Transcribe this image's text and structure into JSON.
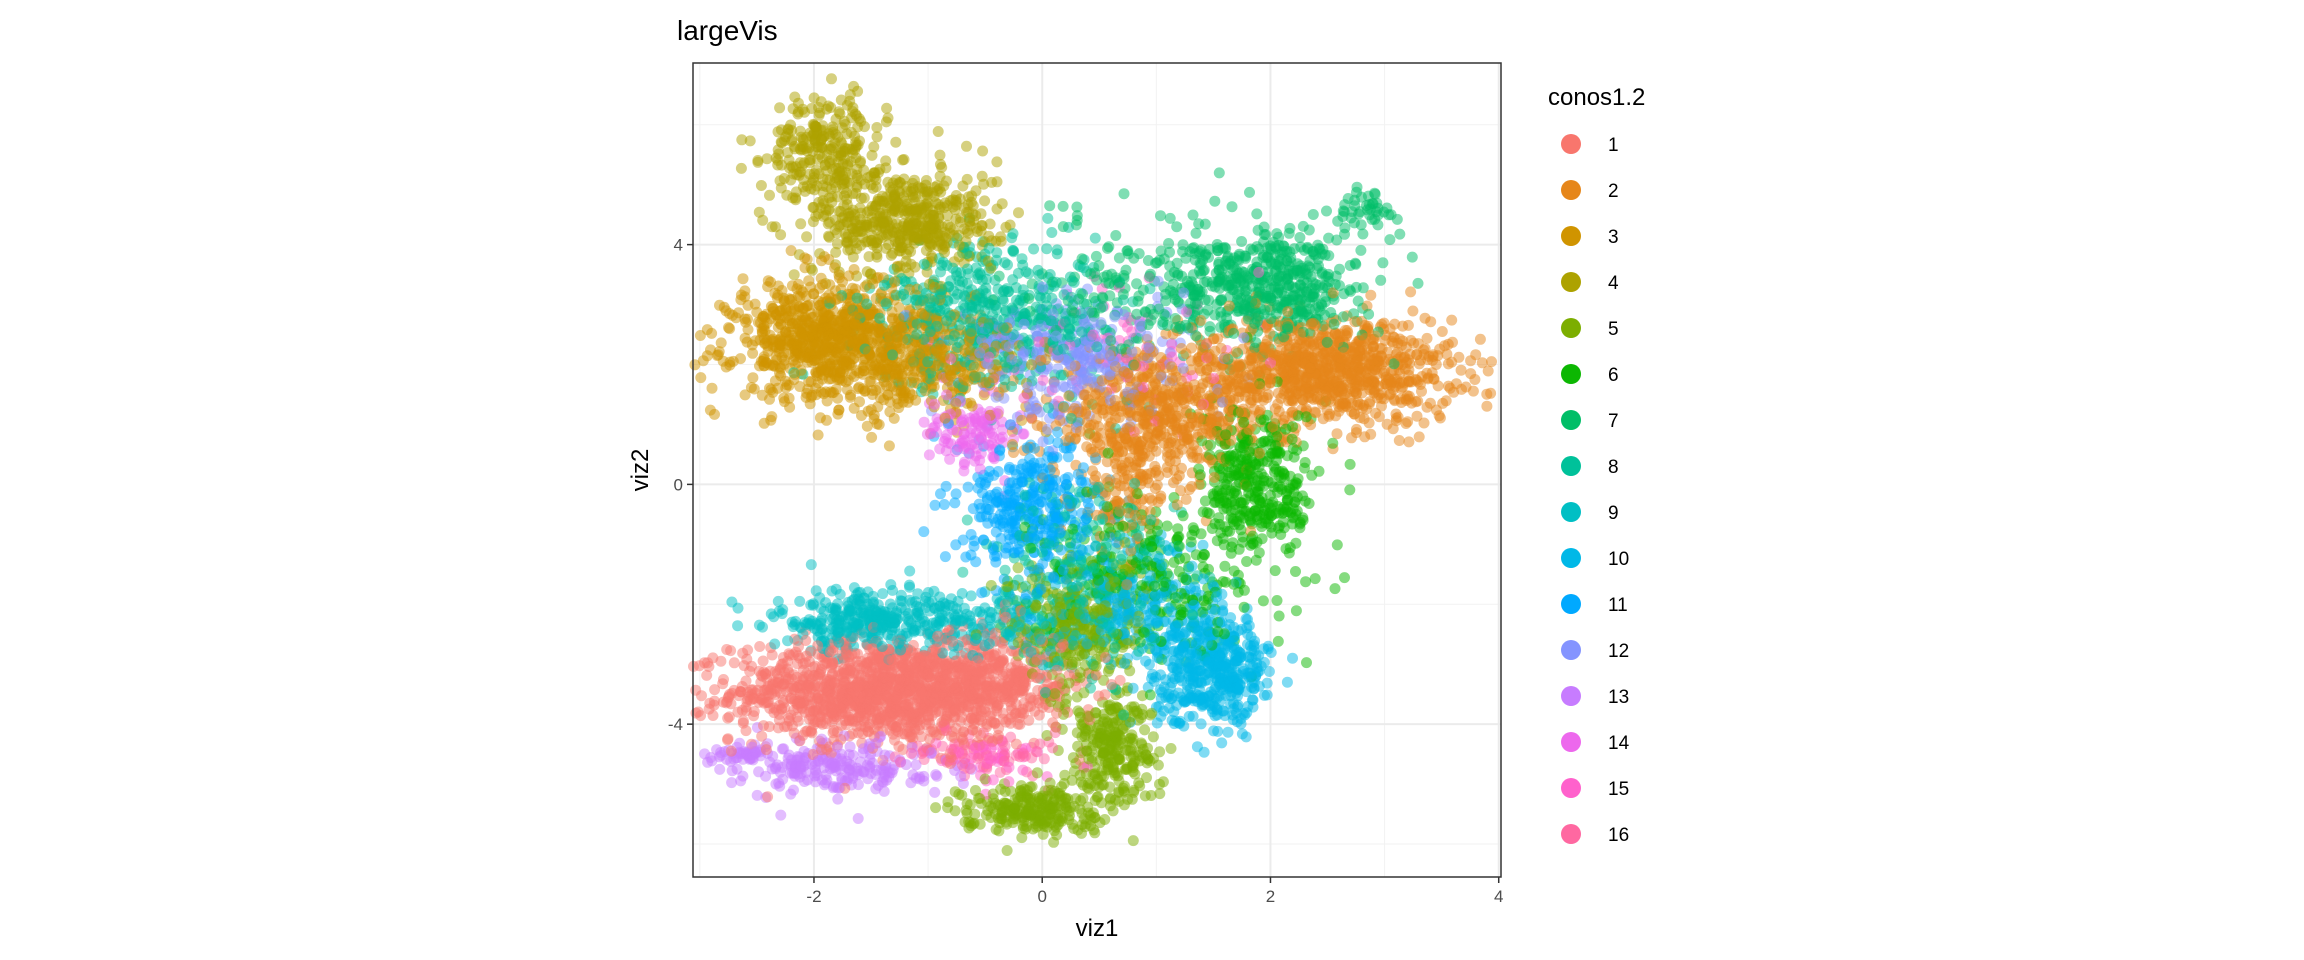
{
  "chart_data": {
    "type": "scatter",
    "title": "largeVis",
    "xlabel": "viz1",
    "ylabel": "viz2",
    "xlim": [
      -3.06,
      4.02
    ],
    "ylim": [
      -6.55,
      7.03
    ],
    "xticks": [
      -2,
      0,
      2,
      4
    ],
    "yticks": [
      -4,
      0,
      4
    ],
    "xtick_labels": [
      "-2",
      "0",
      "2",
      "4"
    ],
    "ytick_labels": [
      "-4",
      "0",
      "4"
    ],
    "grid": true,
    "point_alpha": 0.5,
    "legend": {
      "title": "conos1.2",
      "placement": "right",
      "entries": [
        "1",
        "2",
        "3",
        "4",
        "5",
        "6",
        "7",
        "8",
        "9",
        "10",
        "11",
        "12",
        "13",
        "14",
        "15",
        "16"
      ]
    },
    "colors": [
      "#F8766D",
      "#E6861A",
      "#D09400",
      "#ADA200",
      "#7CAE00",
      "#0CB702",
      "#00BE67",
      "#00C19A",
      "#00BFC4",
      "#00B8E7",
      "#00A9FF",
      "#8494FF",
      "#C77CFF",
      "#ED68ED",
      "#FF61CC",
      "#FF68A1"
    ],
    "clusters": [
      {
        "name": "1",
        "components": [
          {
            "cx": -1.4,
            "cy": -3.45,
            "sx": 0.65,
            "sy": 0.42,
            "n": 1300
          },
          {
            "cx": -0.4,
            "cy": -3.3,
            "sx": 0.35,
            "sy": 0.45,
            "n": 300
          }
        ]
      },
      {
        "name": "2",
        "components": [
          {
            "cx": 2.5,
            "cy": 1.9,
            "sx": 0.55,
            "sy": 0.45,
            "n": 900
          },
          {
            "cx": 1.0,
            "cy": 1.1,
            "sx": 0.5,
            "sy": 0.55,
            "n": 600
          },
          {
            "cx": 0.7,
            "cy": -0.3,
            "sx": 0.2,
            "sy": 0.4,
            "n": 80
          }
        ]
      },
      {
        "name": "3",
        "components": [
          {
            "cx": -1.8,
            "cy": 2.4,
            "sx": 0.45,
            "sy": 0.5,
            "n": 900
          },
          {
            "cx": -0.9,
            "cy": 2.0,
            "sx": 0.4,
            "sy": 0.45,
            "n": 250
          }
        ]
      },
      {
        "name": "4",
        "components": [
          {
            "cx": -1.9,
            "cy": 5.6,
            "sx": 0.25,
            "sy": 0.45,
            "n": 250
          },
          {
            "cx": -1.2,
            "cy": 4.4,
            "sx": 0.4,
            "sy": 0.45,
            "n": 500
          }
        ]
      },
      {
        "name": "5",
        "components": [
          {
            "cx": -0.1,
            "cy": -5.4,
            "sx": 0.3,
            "sy": 0.2,
            "n": 250
          },
          {
            "cx": 0.6,
            "cy": -4.4,
            "sx": 0.2,
            "sy": 0.45,
            "n": 250
          },
          {
            "cx": 0.3,
            "cy": -2.4,
            "sx": 0.3,
            "sy": 0.6,
            "n": 300
          }
        ]
      },
      {
        "name": "6",
        "components": [
          {
            "cx": 1.9,
            "cy": 0.0,
            "sx": 0.25,
            "sy": 0.65,
            "n": 350
          },
          {
            "cx": 1.0,
            "cy": -1.5,
            "sx": 0.5,
            "sy": 0.7,
            "n": 250
          }
        ]
      },
      {
        "name": "7",
        "components": [
          {
            "cx": 2.0,
            "cy": 3.3,
            "sx": 0.4,
            "sy": 0.45,
            "n": 450
          },
          {
            "cx": 1.0,
            "cy": 3.3,
            "sx": 0.6,
            "sy": 0.6,
            "n": 200
          },
          {
            "cx": 2.8,
            "cy": 4.6,
            "sx": 0.15,
            "sy": 0.2,
            "n": 40
          }
        ]
      },
      {
        "name": "8",
        "components": [
          {
            "cx": -0.4,
            "cy": 2.8,
            "sx": 0.55,
            "sy": 0.6,
            "n": 500
          },
          {
            "cx": 0.4,
            "cy": -1.5,
            "sx": 0.4,
            "sy": 0.8,
            "n": 250
          }
        ]
      },
      {
        "name": "9",
        "components": [
          {
            "cx": -1.5,
            "cy": -2.3,
            "sx": 0.45,
            "sy": 0.25,
            "n": 350
          },
          {
            "cx": -0.3,
            "cy": -2.4,
            "sx": 0.4,
            "sy": 0.3,
            "n": 120
          }
        ]
      },
      {
        "name": "10",
        "components": [
          {
            "cx": 1.5,
            "cy": -3.1,
            "sx": 0.25,
            "sy": 0.45,
            "n": 450
          },
          {
            "cx": 0.9,
            "cy": -2.0,
            "sx": 0.35,
            "sy": 0.5,
            "n": 200
          }
        ]
      },
      {
        "name": "11",
        "components": [
          {
            "cx": -0.1,
            "cy": -0.4,
            "sx": 0.3,
            "sy": 0.6,
            "n": 350
          }
        ]
      },
      {
        "name": "12",
        "components": [
          {
            "cx": 0.3,
            "cy": 2.1,
            "sx": 0.5,
            "sy": 0.5,
            "n": 300
          }
        ]
      },
      {
        "name": "13",
        "components": [
          {
            "cx": -1.8,
            "cy": -4.7,
            "sx": 0.45,
            "sy": 0.22,
            "n": 220
          },
          {
            "cx": -2.6,
            "cy": -4.5,
            "sx": 0.12,
            "sy": 0.08,
            "n": 40
          }
        ]
      },
      {
        "name": "14",
        "components": [
          {
            "cx": -0.6,
            "cy": 0.9,
            "sx": 0.2,
            "sy": 0.3,
            "n": 120
          }
        ]
      },
      {
        "name": "15",
        "components": [
          {
            "cx": 0.6,
            "cy": 2.2,
            "sx": 0.6,
            "sy": 0.6,
            "n": 80
          },
          {
            "cx": -0.4,
            "cy": -4.6,
            "sx": 0.3,
            "sy": 0.2,
            "n": 40
          }
        ]
      },
      {
        "name": "16",
        "components": [
          {
            "cx": -0.5,
            "cy": -4.5,
            "sx": 0.35,
            "sy": 0.2,
            "n": 80
          }
        ]
      }
    ]
  }
}
